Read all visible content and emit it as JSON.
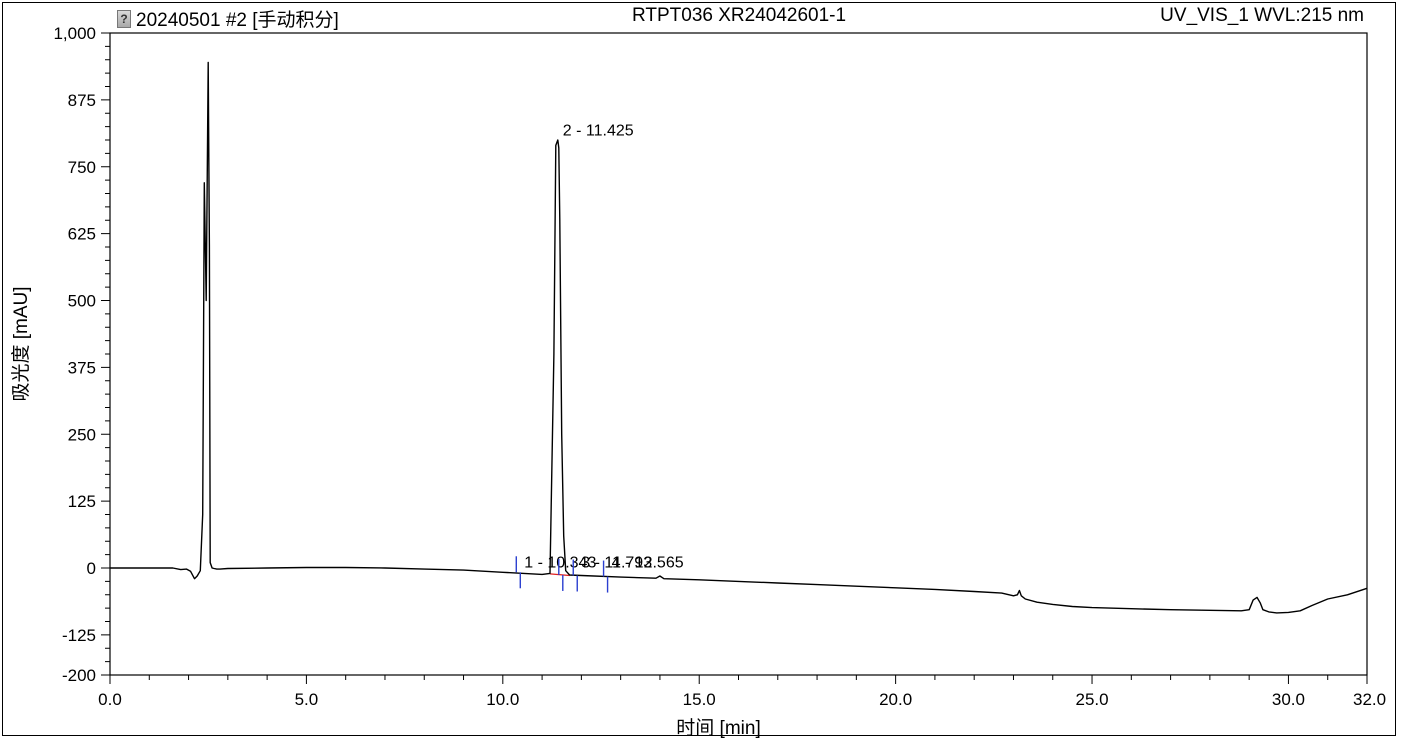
{
  "header": {
    "icon": "document-icon",
    "left": "20240501 #2 [手动积分]",
    "center": "RTPT036 XR24042601-1",
    "right": "UV_VIS_1 WVL:215 nm"
  },
  "chart_data": {
    "type": "line",
    "xlabel": "时间 [min]",
    "ylabel": "吸光度 [mAU]",
    "xlim": [
      0,
      32
    ],
    "ylim": [
      -200,
      1000
    ],
    "xticks": [
      0,
      5,
      10,
      15,
      20,
      25,
      30,
      32
    ],
    "xtick_labels": [
      "0.0",
      "5.0",
      "10.0",
      "15.0",
      "20.0",
      "25.0",
      "30.0",
      "32.0"
    ],
    "yticks": [
      1000,
      875,
      750,
      625,
      500,
      375,
      250,
      125,
      0,
      -125,
      -200
    ],
    "ytick_labels": [
      "1,000",
      "875",
      "750",
      "625",
      "500",
      "375",
      "250",
      "125",
      "0",
      "-125",
      "-200"
    ],
    "grid": false,
    "series": [
      {
        "color": "#000000",
        "x": [
          0.0,
          1.0,
          1.6,
          1.8,
          1.95,
          2.05,
          2.15,
          2.22,
          2.3,
          2.36,
          2.4,
          2.45,
          2.5,
          2.53,
          2.55,
          2.6,
          2.65,
          2.72,
          2.8,
          3.0,
          4.0,
          5.0,
          6.0,
          7.0,
          8.0,
          9.0,
          10.0,
          11.0,
          11.2,
          11.3,
          11.35,
          11.4,
          11.425,
          11.45,
          11.5,
          11.55,
          11.6,
          11.7,
          12.0,
          13.0,
          13.9,
          14.0,
          14.1,
          15.0,
          16.0,
          17.0,
          18.0,
          19.0,
          20.0,
          21.0,
          22.0,
          22.7,
          23.0,
          23.1,
          23.15,
          23.2,
          23.3,
          23.6,
          24.0,
          24.5,
          25.0,
          26.0,
          27.0,
          28.0,
          28.8,
          29.0,
          29.1,
          29.2,
          29.28,
          29.35,
          29.5,
          29.7,
          30.0,
          30.3,
          30.6,
          31.0,
          31.5,
          32.0
        ],
        "y": [
          0,
          0,
          0,
          -3,
          -2,
          -6,
          -20,
          -15,
          -5,
          100,
          720,
          500,
          945,
          600,
          10,
          0,
          -1,
          -2,
          -2,
          -1,
          0,
          1,
          1,
          0,
          -2,
          -4,
          -8,
          -12,
          -10,
          400,
          790,
          800,
          785,
          650,
          250,
          60,
          -5,
          -13,
          -14,
          -17,
          -19,
          -15,
          -20,
          -22,
          -25,
          -28,
          -31,
          -34,
          -37,
          -40,
          -44,
          -47,
          -52,
          -50,
          -42,
          -52,
          -58,
          -64,
          -68,
          -72,
          -74,
          -76,
          -78,
          -79,
          -80,
          -78,
          -60,
          -55,
          -65,
          -78,
          -82,
          -84,
          -83,
          -80,
          -70,
          -58,
          -50,
          -38
        ]
      }
    ],
    "annotations": [
      {
        "label": "1 - 10.343",
        "x": 10.343,
        "y": 5
      },
      {
        "label": "2 - 11.425",
        "x": 11.425,
        "y": 820
      },
      {
        "label": "3 - 11.793",
        "x": 11.793,
        "y": 5
      },
      {
        "label": "4 - 12.565",
        "x": 12.565,
        "y": 5
      }
    ]
  }
}
